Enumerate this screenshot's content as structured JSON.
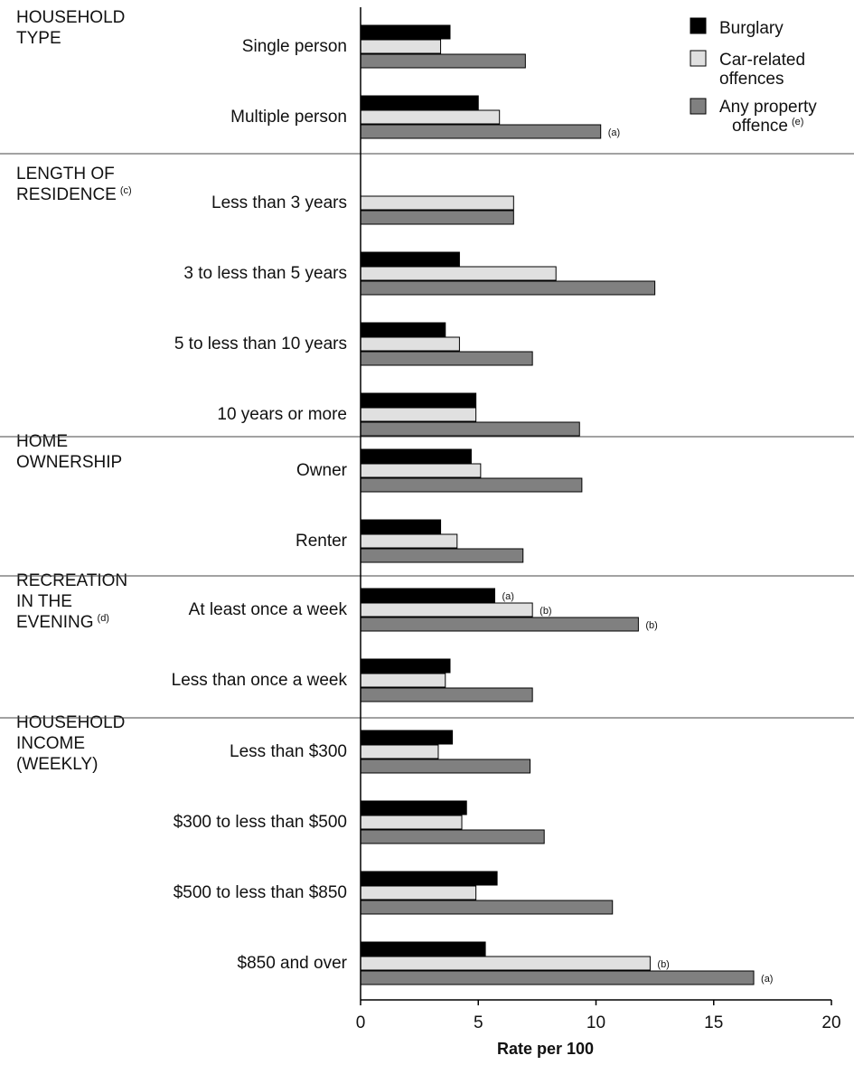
{
  "chart_data": {
    "type": "bar",
    "orientation": "horizontal",
    "xlabel": "Rate per 100",
    "xlim": [
      0,
      20
    ],
    "xticks": [
      "0",
      "5",
      "10",
      "15",
      "20"
    ],
    "grid": false,
    "legend": {
      "placement": "top-right",
      "entries": [
        {
          "lines": [
            "Burglary"
          ],
          "color": "#000000"
        },
        {
          "lines": [
            "Car-related",
            "offences"
          ],
          "color": "#e0e0e0"
        },
        {
          "lines": [
            "Any property",
            "offence"
          ],
          "sup": "(e)",
          "color": "#808080"
        }
      ]
    },
    "series_names": [
      "Burglary",
      "Car-related offences",
      "Any property offence"
    ],
    "series_colors": [
      "#000000",
      "#e0e0e0",
      "#808080"
    ],
    "groups": [
      {
        "label_lines": [
          "HOUSEHOLD",
          "TYPE"
        ],
        "sup": "",
        "categories": [
          {
            "label": "Single person",
            "values": [
              3.8,
              3.4,
              7.0
            ],
            "notes": [
              "",
              "",
              ""
            ]
          },
          {
            "label": "Multiple person",
            "values": [
              5.0,
              5.9,
              10.2
            ],
            "notes": [
              "",
              "",
              "(a)"
            ]
          }
        ]
      },
      {
        "label_lines": [
          "LENGTH OF",
          "RESIDENCE"
        ],
        "sup": "(c)",
        "categories": [
          {
            "label": "Less than 3 years",
            "values": [
              null,
              6.5,
              6.5
            ],
            "notes": [
              "",
              "",
              ""
            ]
          },
          {
            "label": "3 to less than 5 years",
            "values": [
              4.2,
              8.3,
              12.5
            ],
            "notes": [
              "",
              "",
              ""
            ]
          },
          {
            "label": "5 to less than 10 years",
            "values": [
              3.6,
              4.2,
              7.3
            ],
            "notes": [
              "",
              "",
              ""
            ]
          },
          {
            "label": "10 years or more",
            "values": [
              4.9,
              4.9,
              9.3
            ],
            "notes": [
              "",
              "",
              ""
            ]
          }
        ]
      },
      {
        "label_lines": [
          "HOME",
          "OWNERSHIP"
        ],
        "sup": "",
        "categories": [
          {
            "label": "Owner",
            "values": [
              4.7,
              5.1,
              9.4
            ],
            "notes": [
              "",
              "",
              ""
            ]
          },
          {
            "label": "Renter",
            "values": [
              3.4,
              4.1,
              6.9
            ],
            "notes": [
              "",
              "",
              ""
            ]
          }
        ]
      },
      {
        "label_lines": [
          "RECREATION",
          "IN THE",
          "EVENING"
        ],
        "sup": "(d)",
        "categories": [
          {
            "label": "At least once a week",
            "values": [
              5.7,
              7.3,
              11.8
            ],
            "notes": [
              "(a)",
              "(b)",
              "(b)"
            ]
          },
          {
            "label": "Less than once a week",
            "values": [
              3.8,
              3.6,
              7.3
            ],
            "notes": [
              "",
              "",
              ""
            ]
          }
        ]
      },
      {
        "label_lines": [
          "HOUSEHOLD",
          "INCOME",
          "(WEEKLY)"
        ],
        "sup": "",
        "categories": [
          {
            "label": "Less than $300",
            "values": [
              3.9,
              3.3,
              7.2
            ],
            "notes": [
              "",
              "",
              ""
            ]
          },
          {
            "label": "$300 to less than $500",
            "values": [
              4.5,
              4.3,
              7.8
            ],
            "notes": [
              "",
              "",
              ""
            ]
          },
          {
            "label": "$500 to less than $850",
            "values": [
              5.8,
              4.9,
              10.7
            ],
            "notes": [
              "",
              "",
              ""
            ]
          },
          {
            "label": "$850 and over",
            "values": [
              5.3,
              12.3,
              16.7
            ],
            "notes": [
              "",
              "(b)",
              "(a)"
            ]
          }
        ]
      }
    ]
  }
}
